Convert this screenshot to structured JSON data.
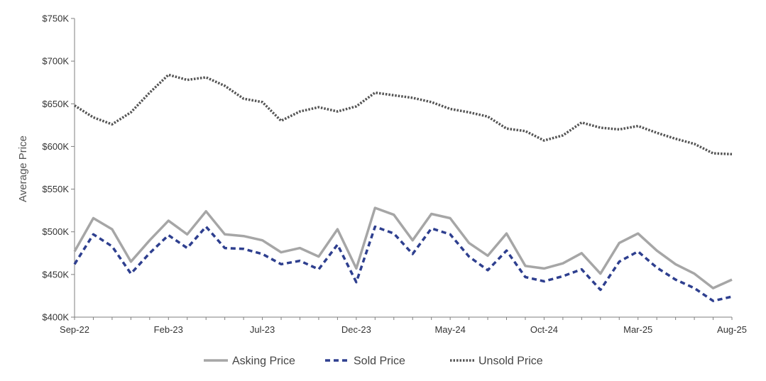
{
  "chart_data": {
    "type": "line",
    "ylabel": "Average Price",
    "xlabel": "",
    "ylim": [
      400000,
      750000
    ],
    "y_ticks": [
      400000,
      450000,
      500000,
      550000,
      600000,
      650000,
      700000,
      750000
    ],
    "y_tick_labels": [
      "$400K",
      "$450K",
      "$500K",
      "$550K",
      "$600K",
      "$650K",
      "$700K",
      "$750K"
    ],
    "x": [
      "Sep-22",
      "Oct-22",
      "Nov-22",
      "Dec-22",
      "Jan-23",
      "Feb-23",
      "Mar-23",
      "Apr-23",
      "May-23",
      "Jun-23",
      "Jul-23",
      "Aug-23",
      "Sep-23",
      "Oct-23",
      "Nov-23",
      "Dec-23",
      "Jan-24",
      "Feb-24",
      "Mar-24",
      "Apr-24",
      "May-24",
      "Jun-24",
      "Jul-24",
      "Aug-24",
      "Sep-24",
      "Oct-24",
      "Nov-24",
      "Dec-24",
      "Jan-25",
      "Feb-25",
      "Mar-25",
      "Apr-25",
      "May-25",
      "Jun-25",
      "Jul-25",
      "Aug-25"
    ],
    "x_tick_labels": [
      "Sep-22",
      "Feb-23",
      "Jul-23",
      "Dec-23",
      "May-24",
      "Oct-24",
      "Mar-25",
      "Aug-25"
    ],
    "legend_position": "bottom",
    "grid": false,
    "series": [
      {
        "name": "Asking Price",
        "color": "#a6a6a6",
        "style": "solid",
        "values": [
          477000,
          516000,
          503000,
          465000,
          490000,
          513000,
          497000,
          524000,
          497000,
          495000,
          490000,
          476000,
          481000,
          471000,
          503000,
          457000,
          528000,
          520000,
          490000,
          521000,
          516000,
          487000,
          472000,
          498000,
          460000,
          457000,
          463000,
          475000,
          451000,
          487000,
          498000,
          478000,
          462000,
          451000,
          434000,
          444000
        ]
      },
      {
        "name": "Sold Price",
        "color": "#2e3f8f",
        "style": "dashed",
        "values": [
          462000,
          497000,
          483000,
          451000,
          475000,
          496000,
          481000,
          506000,
          481000,
          480000,
          474000,
          462000,
          466000,
          456000,
          485000,
          441000,
          506000,
          498000,
          474000,
          504000,
          497000,
          471000,
          455000,
          478000,
          447000,
          442000,
          448000,
          456000,
          432000,
          465000,
          477000,
          458000,
          444000,
          434000,
          419000,
          424000
        ]
      },
      {
        "name": "Unsold Price",
        "color": "#555555",
        "style": "dotted",
        "values": [
          648000,
          634000,
          626000,
          640000,
          663000,
          684000,
          678000,
          681000,
          671000,
          656000,
          652000,
          630000,
          641000,
          646000,
          641000,
          647000,
          663000,
          660000,
          657000,
          652000,
          644000,
          640000,
          635000,
          621000,
          618000,
          607000,
          613000,
          628000,
          622000,
          620000,
          624000,
          616000,
          609000,
          603000,
          592000,
          591000
        ]
      }
    ]
  }
}
